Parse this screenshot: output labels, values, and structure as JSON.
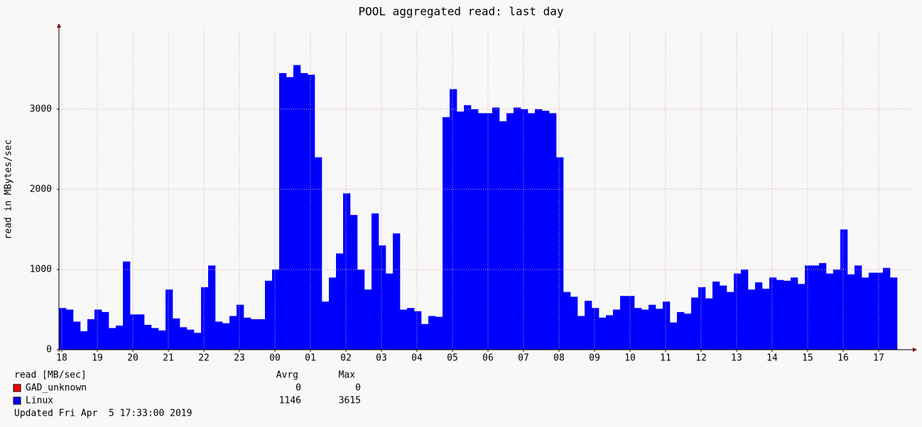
{
  "chart_data": {
    "type": "area",
    "title": "POOL aggregated read: last day",
    "y_label": "read in MBytes/sec",
    "xlim": [
      -0.08,
      23.96
    ],
    "xticks": [
      {
        "value": 0,
        "label": "18"
      },
      {
        "value": 1,
        "label": "19"
      },
      {
        "value": 2,
        "label": "20"
      },
      {
        "value": 3,
        "label": "21"
      },
      {
        "value": 4,
        "label": "22"
      },
      {
        "value": 5,
        "label": "23"
      },
      {
        "value": 6,
        "label": "00"
      },
      {
        "value": 7,
        "label": "01"
      },
      {
        "value": 8,
        "label": "02"
      },
      {
        "value": 9,
        "label": "03"
      },
      {
        "value": 10,
        "label": "04"
      },
      {
        "value": 11,
        "label": "05"
      },
      {
        "value": 12,
        "label": "06"
      },
      {
        "value": 13,
        "label": "07"
      },
      {
        "value": 14,
        "label": "08"
      },
      {
        "value": 15,
        "label": "09"
      },
      {
        "value": 16,
        "label": "10"
      },
      {
        "value": 17,
        "label": "11"
      },
      {
        "value": 18,
        "label": "12"
      },
      {
        "value": 19,
        "label": "13"
      },
      {
        "value": 20,
        "label": "14"
      },
      {
        "value": 21,
        "label": "15"
      },
      {
        "value": 22,
        "label": "16"
      },
      {
        "value": 23,
        "label": "17"
      }
    ],
    "ylim": [
      0,
      3990
    ],
    "yticks": [
      0,
      1000,
      2000,
      3000
    ],
    "grid": true,
    "x": [
      0,
      0.2,
      0.4,
      0.6,
      0.8,
      1,
      1.2,
      1.4,
      1.6,
      1.8,
      2,
      2.2,
      2.4,
      2.6,
      2.8,
      3,
      3.2,
      3.4,
      3.6,
      3.8,
      4,
      4.2,
      4.4,
      4.6,
      4.8,
      5,
      5.2,
      5.4,
      5.6,
      5.8,
      6,
      6.2,
      6.4,
      6.6,
      6.8,
      7,
      7.2,
      7.4,
      7.6,
      7.8,
      8,
      8.2,
      8.4,
      8.6,
      8.8,
      9,
      9.2,
      9.4,
      9.6,
      9.8,
      10,
      10.2,
      10.4,
      10.6,
      10.8,
      11,
      11.2,
      11.4,
      11.6,
      11.8,
      12,
      12.2,
      12.4,
      12.6,
      12.8,
      13,
      13.2,
      13.4,
      13.6,
      13.8,
      14,
      14.2,
      14.4,
      14.6,
      14.8,
      15,
      15.2,
      15.4,
      15.6,
      15.8,
      16,
      16.2,
      16.4,
      16.6,
      16.8,
      17,
      17.2,
      17.4,
      17.6,
      17.8,
      18,
      18.2,
      18.4,
      18.6,
      18.8,
      19,
      19.2,
      19.4,
      19.6,
      19.8,
      20,
      20.2,
      20.4,
      20.6,
      20.8,
      21,
      21.2,
      21.4,
      21.6,
      21.8,
      22,
      22.2,
      22.4,
      22.6,
      22.8,
      23,
      23.2,
      23.4
    ],
    "legend_header": "read [MB/sec]",
    "stat_columns": [
      "Avrg",
      "Max"
    ],
    "series": [
      {
        "name": "GAD_unknown",
        "color": "#ff0000",
        "stats": [
          0,
          0
        ]
      },
      {
        "name": "Linux",
        "color": "#0000ff",
        "stats": [
          1146,
          3615
        ],
        "values": [
          520,
          500,
          350,
          230,
          380,
          500,
          470,
          270,
          300,
          1100,
          440,
          440,
          310,
          270,
          240,
          750,
          390,
          280,
          250,
          210,
          780,
          1050,
          350,
          330,
          420,
          560,
          400,
          380,
          380,
          860,
          1000,
          3450,
          3400,
          3550,
          3450,
          3430,
          2400,
          600,
          900,
          1200,
          1950,
          1680,
          1000,
          750,
          1700,
          1300,
          950,
          1450,
          500,
          520,
          480,
          320,
          420,
          410,
          2900,
          3250,
          2970,
          3050,
          3000,
          2950,
          2950,
          3020,
          2850,
          2950,
          3020,
          3000,
          2950,
          3000,
          2980,
          2950,
          2400,
          720,
          660,
          420,
          610,
          520,
          400,
          430,
          500,
          670,
          670,
          520,
          500,
          560,
          510,
          600,
          340,
          470,
          450,
          650,
          780,
          640,
          850,
          800,
          720,
          950,
          1000,
          750,
          840,
          760,
          900,
          870,
          860,
          900,
          820,
          1050,
          1050,
          1080,
          950,
          1000,
          1500,
          940,
          1050,
          900,
          960,
          960,
          1020,
          900
        ]
      }
    ],
    "footer": "Updated Fri Apr  5 17:33:00 2019"
  }
}
